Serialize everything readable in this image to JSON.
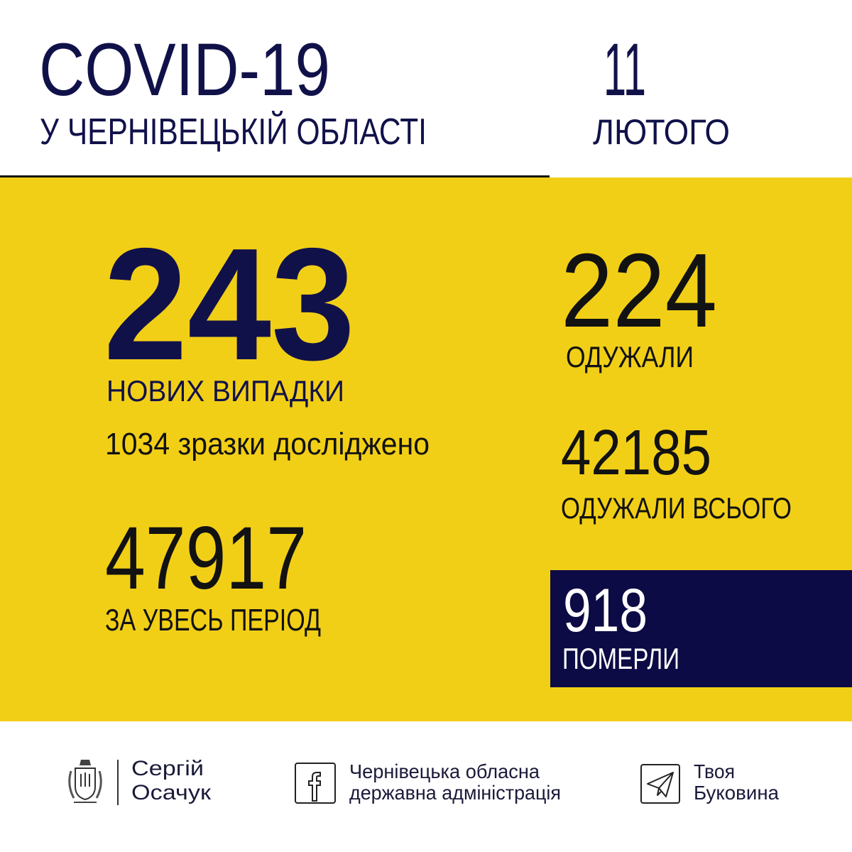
{
  "header": {
    "title": "COVID-19",
    "subtitle": "У ЧЕРНІВЕЦЬКІЙ ОБЛАСТІ",
    "day": "11",
    "month": "ЛЮТОГО"
  },
  "stats": {
    "new_cases": {
      "value": "243",
      "label": "НОВИХ ВИПАДКИ"
    },
    "tested": "1034 зразки досліджено",
    "total": {
      "value": "47917",
      "label": "ЗА УВЕСЬ ПЕРІОД"
    },
    "recovered": {
      "value": "224",
      "label": "ОДУЖАЛИ"
    },
    "recovered_total": {
      "value": "42185",
      "label": "ОДУЖАЛИ ВСЬОГО"
    },
    "deaths": {
      "value": "918",
      "label": "ПОМЕРЛИ"
    }
  },
  "footer": {
    "person": {
      "line1": "Сергій",
      "line2": "Осачук",
      "icon": "coat-of-arms-icon"
    },
    "facebook": {
      "line1": "Чернівецька обласна",
      "line2": "державна адміністрація",
      "icon": "facebook-icon"
    },
    "telegram": {
      "line1": "Твоя",
      "line2": "Буковина",
      "icon": "telegram-icon"
    }
  },
  "colors": {
    "yellow": "#f2cf17",
    "navy": "#0d0b45"
  }
}
